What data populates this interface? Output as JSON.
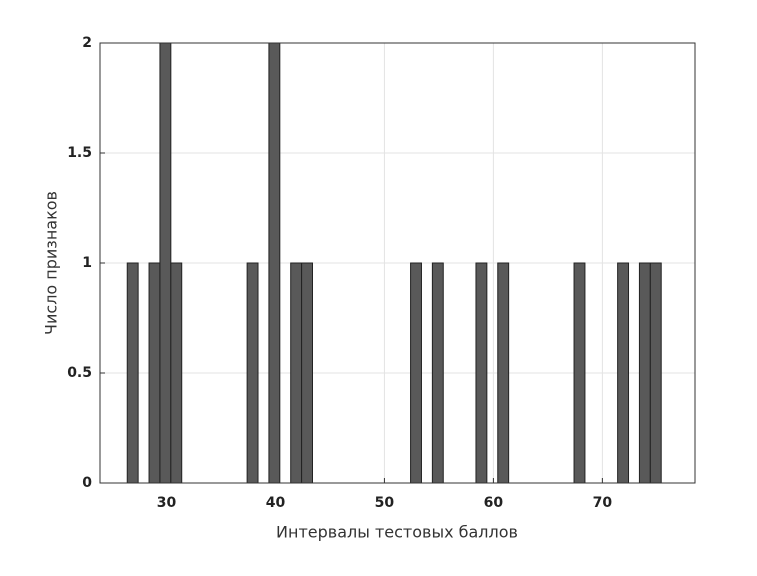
{
  "chart_data": {
    "type": "histogram",
    "x_label": "Интервалы тестовых баллов",
    "y_label": "Число признаков",
    "bins": [
      26.4,
      27.4,
      28.4,
      29.4,
      30.4,
      31.4,
      32.4,
      33.4,
      34.4,
      35.4,
      36.4,
      37.4,
      38.4,
      39.4,
      40.4,
      41.4,
      42.4,
      43.4,
      44.4,
      45.4,
      46.4,
      47.4,
      48.4,
      49.4,
      50.4,
      51.4,
      52.4,
      53.4,
      54.4,
      55.4,
      56.4,
      57.4,
      58.4,
      59.4,
      60.4,
      61.4,
      62.4,
      63.4,
      64.4,
      65.4,
      66.4,
      67.4,
      68.4,
      69.4,
      70.4,
      71.4,
      72.4,
      73.4,
      74.4,
      75.4
    ],
    "values": [
      1,
      0,
      1,
      2,
      1,
      0,
      0,
      0,
      0,
      0,
      0,
      1,
      0,
      2,
      0,
      1,
      1,
      0,
      0,
      0,
      0,
      0,
      0,
      0,
      0,
      0,
      1,
      0,
      1,
      0,
      0,
      0,
      1,
      0,
      1,
      0,
      0,
      0,
      0,
      0,
      0,
      1,
      0,
      0,
      0,
      1,
      0,
      1,
      1
    ],
    "color": "#595959",
    "xlim": [
      23.9,
      78.5
    ],
    "xticks": [
      30,
      40,
      50,
      60,
      70
    ],
    "ylim": [
      0,
      2
    ],
    "yticks": [
      0,
      0.5,
      1,
      1.5,
      2
    ],
    "grid": true
  }
}
